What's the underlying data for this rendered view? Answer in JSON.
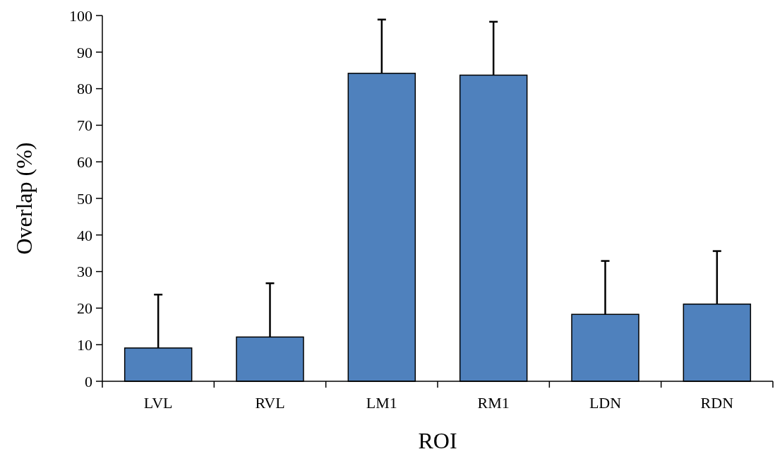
{
  "chart_data": {
    "type": "bar",
    "xlabel": "ROI",
    "ylabel": "Overlap (%)",
    "categories": [
      "LVL",
      "RVL",
      "LM1",
      "RM1",
      "LDN",
      "RDN"
    ],
    "values": [
      9.1,
      12.1,
      84.2,
      83.7,
      18.3,
      21.1
    ],
    "errors": [
      [
        9.1,
        23.7
      ],
      [
        12.1,
        26.8
      ],
      [
        84.2,
        98.9
      ],
      [
        83.7,
        98.3
      ],
      [
        18.3,
        32.9
      ],
      [
        21.1,
        35.6
      ]
    ],
    "color": "#4f81bd",
    "ylim": [
      0,
      100
    ],
    "yticks": [
      0,
      10,
      20,
      30,
      40,
      50,
      60,
      70,
      80,
      90,
      100
    ],
    "grid": false
  }
}
